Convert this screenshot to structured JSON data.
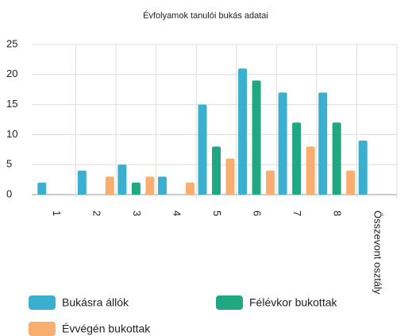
{
  "chart_data": {
    "type": "bar",
    "title": "Évfolyamok tanulói bukás adatai",
    "categories": [
      "1",
      "2",
      "3",
      "4",
      "5",
      "6",
      "7",
      "8",
      "Összevont osztály"
    ],
    "series": [
      {
        "name": "Bukásra állók",
        "color": "#3aafd0",
        "values": [
          2,
          4,
          5,
          3,
          15,
          21,
          17,
          17,
          9
        ]
      },
      {
        "name": "Félévkor bukottak",
        "color": "#1fa882",
        "values": [
          0,
          0,
          2,
          0,
          8,
          19,
          12,
          12,
          0
        ]
      },
      {
        "name": "Évvégén bukottak",
        "color": "#f9ad6e",
        "values": [
          0,
          3,
          3,
          2,
          6,
          4,
          8,
          4,
          0
        ]
      }
    ],
    "ylim": [
      0,
      25
    ],
    "yticks": [
      0,
      5,
      10,
      15,
      20,
      25
    ],
    "grid": true
  }
}
